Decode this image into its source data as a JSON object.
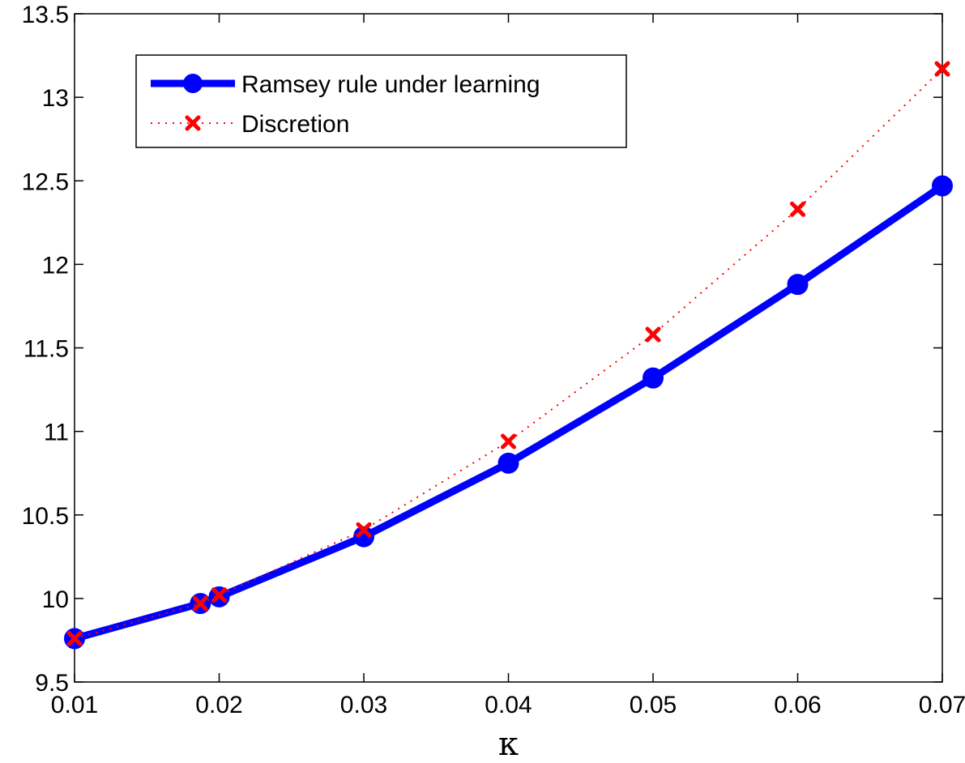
{
  "chart_data": {
    "type": "line",
    "title": "",
    "xlabel": "κ",
    "ylabel": "",
    "xlim": [
      0.01,
      0.07
    ],
    "ylim": [
      9.5,
      13.5
    ],
    "x_ticks": [
      "0.01",
      "0.02",
      "0.03",
      "0.04",
      "0.05",
      "0.06",
      "0.07"
    ],
    "y_ticks": [
      "9.5",
      "10",
      "10.5",
      "11",
      "11.5",
      "12",
      "12.5",
      "13",
      "13.5"
    ],
    "grid": false,
    "legend_position": "top-left",
    "series": [
      {
        "name": "Ramsey rule under learning",
        "color": "#0000ff",
        "line_style": "solid",
        "marker": "circle",
        "x": [
          0.01,
          0.0187,
          0.02,
          0.03,
          0.04,
          0.05,
          0.06,
          0.07
        ],
        "y": [
          9.76,
          9.97,
          10.01,
          10.37,
          10.81,
          11.32,
          11.88,
          12.47
        ]
      },
      {
        "name": "Discretion",
        "color": "#ff0000",
        "line_style": "dotted",
        "marker": "x",
        "x": [
          0.01,
          0.0187,
          0.02,
          0.03,
          0.04,
          0.05,
          0.06,
          0.07
        ],
        "y": [
          9.76,
          9.97,
          10.02,
          10.41,
          10.94,
          11.58,
          12.33,
          13.17
        ]
      }
    ]
  }
}
